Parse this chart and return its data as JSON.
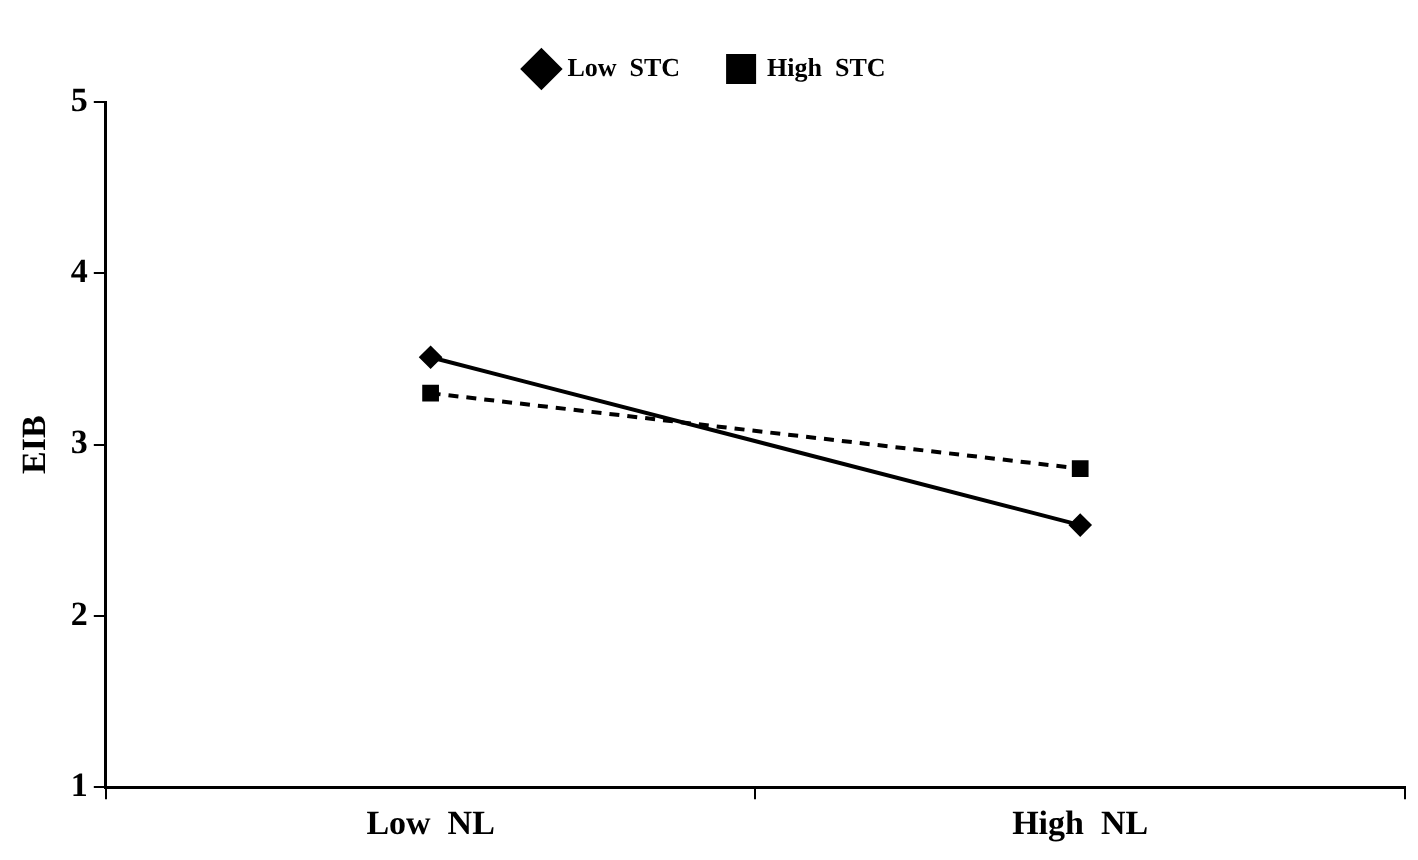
{
  "chart_data": {
    "type": "line",
    "ylabel": "EIB",
    "categories": [
      "Low  NL",
      "High  NL"
    ],
    "series": [
      {
        "name": "Low  STC",
        "color": "#000000",
        "values": [
          3.51,
          2.53
        ],
        "marker": "diamond",
        "line_style": "solid"
      },
      {
        "name": "High  STC",
        "color": "#000000",
        "values": [
          3.3,
          2.86
        ],
        "marker": "square",
        "line_style": "dashed"
      }
    ],
    "ylim": [
      1,
      5
    ],
    "yticks": [
      1,
      2,
      3,
      4,
      5
    ],
    "grid": false,
    "legend": "top"
  }
}
